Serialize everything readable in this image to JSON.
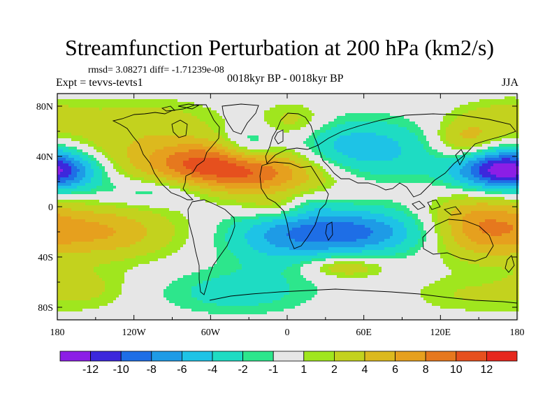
{
  "chart_data": {
    "type": "heatmap",
    "title": "Streamfunction Perturbation at 200 hPa (km2/s)",
    "stats_text": "rmsd= 3.08271 diff= -1.71239e-08",
    "left_label": "Expt = tevvs-tevts1",
    "center_label": "0018kyr BP - 0018kyr BP",
    "right_label": "JJA",
    "x_ticks": [
      {
        "value": -180,
        "label": "180"
      },
      {
        "value": -120,
        "label": "120W"
      },
      {
        "value": -60,
        "label": "60W"
      },
      {
        "value": 0,
        "label": "0"
      },
      {
        "value": 60,
        "label": "60E"
      },
      {
        "value": 120,
        "label": "120E"
      },
      {
        "value": 180,
        "label": "180"
      }
    ],
    "y_ticks": [
      {
        "value": 80,
        "label": "80N"
      },
      {
        "value": 40,
        "label": "40N"
      },
      {
        "value": 0,
        "label": "0"
      },
      {
        "value": -40,
        "label": "40S"
      },
      {
        "value": -80,
        "label": "80S"
      }
    ],
    "xlim": [
      -180,
      180
    ],
    "ylim": [
      -90,
      90
    ],
    "colorbar": {
      "colors": [
        "#8c1ee6",
        "#3c28dc",
        "#1e6ee6",
        "#1e9be6",
        "#1ec3e6",
        "#1edcc3",
        "#2de68c",
        "#e6e6e6",
        "#a0e61e",
        "#c3d21e",
        "#dcb91e",
        "#e6a01e",
        "#e6781e",
        "#e6501e",
        "#e6281e"
      ],
      "labels": [
        "-12",
        "-10",
        "-8",
        "-6",
        "-4",
        "-2",
        "-1",
        "1",
        "2",
        "4",
        "6",
        "8",
        "10",
        "12"
      ]
    },
    "anomalies": [
      {
        "lon": -30,
        "lat": 28,
        "slon": 45,
        "slat": 14,
        "amp": 10
      },
      {
        "lon": -75,
        "lat": 38,
        "slon": 30,
        "slat": 12,
        "amp": 5
      },
      {
        "lon": -150,
        "lat": 42,
        "slon": 40,
        "slat": 14,
        "amp": 3
      },
      {
        "lon": -110,
        "lat": 68,
        "slon": 40,
        "slat": 12,
        "amp": 3
      },
      {
        "lon": 5,
        "lat": 68,
        "slon": 18,
        "slat": 10,
        "amp": 3
      },
      {
        "lon": 170,
        "lat": 72,
        "slon": 25,
        "slat": 10,
        "amp": 2.5
      },
      {
        "lon": 140,
        "lat": 52,
        "slon": 18,
        "slat": 12,
        "amp": 5
      },
      {
        "lon": 165,
        "lat": 30,
        "slon": 28,
        "slat": 12,
        "amp": -10
      },
      {
        "lon": -180,
        "lat": 30,
        "slon": 25,
        "slat": 12,
        "amp": -6
      },
      {
        "lon": 55,
        "lat": 45,
        "slon": 40,
        "slat": 16,
        "amp": -6
      },
      {
        "lon": -30,
        "lat": 48,
        "slon": 15,
        "slat": 10,
        "amp": -4
      },
      {
        "lon": -100,
        "lat": 12,
        "slon": 30,
        "slat": 8,
        "amp": -3
      },
      {
        "lon": 45,
        "lat": -20,
        "slon": 45,
        "slat": 13,
        "amp": -9
      },
      {
        "lon": -10,
        "lat": -28,
        "slon": 30,
        "slat": 18,
        "amp": -3
      },
      {
        "lon": -40,
        "lat": -68,
        "slon": 40,
        "slat": 12,
        "amp": -3
      },
      {
        "lon": -145,
        "lat": -20,
        "slon": 40,
        "slat": 15,
        "amp": 6
      },
      {
        "lon": -160,
        "lat": -65,
        "slon": 25,
        "slat": 12,
        "amp": 2.5
      },
      {
        "lon": -10,
        "lat": -2,
        "slon": 18,
        "slat": 7,
        "amp": 2.5
      },
      {
        "lon": 150,
        "lat": -15,
        "slon": 28,
        "slat": 18,
        "amp": 7
      },
      {
        "lon": 140,
        "lat": -70,
        "slon": 30,
        "slat": 10,
        "amp": 2
      },
      {
        "lon": 45,
        "lat": -48,
        "slon": 22,
        "slat": 6,
        "amp": 4
      },
      {
        "lon": 20,
        "lat": 2,
        "slon": 12,
        "slat": 7,
        "amp": -1.5
      }
    ]
  }
}
